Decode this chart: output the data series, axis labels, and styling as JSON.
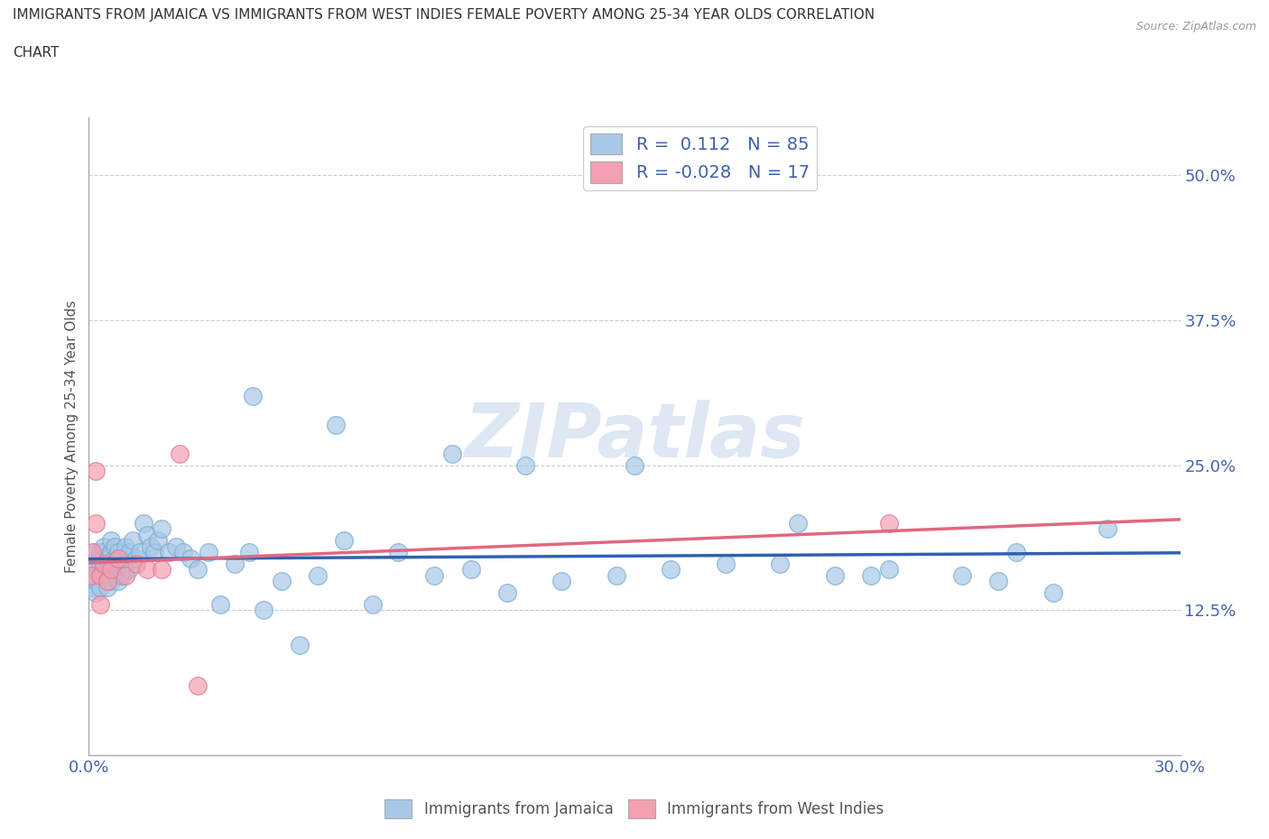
{
  "title_line1": "IMMIGRANTS FROM JAMAICA VS IMMIGRANTS FROM WEST INDIES FEMALE POVERTY AMONG 25-34 YEAR OLDS CORRELATION",
  "title_line2": "CHART",
  "source": "Source: ZipAtlas.com",
  "ylabel": "Female Poverty Among 25-34 Year Olds",
  "xlim": [
    0.0,
    0.3
  ],
  "ylim": [
    0.0,
    0.55
  ],
  "yticks": [
    0.125,
    0.25,
    0.375,
    0.5
  ],
  "ytick_labels": [
    "12.5%",
    "25.0%",
    "37.5%",
    "50.0%"
  ],
  "xticks": [
    0.0,
    0.05,
    0.1,
    0.15,
    0.2,
    0.25,
    0.3
  ],
  "xtick_labels": [
    "0.0%",
    "",
    "",
    "",
    "",
    "",
    "30.0%"
  ],
  "jamaica_color": "#A8C8E8",
  "west_indies_color": "#F4A0B0",
  "jamaica_edge_color": "#7AAAD0",
  "west_indies_edge_color": "#E07890",
  "jamaica_line_color": "#3060B0",
  "west_indies_line_color": "#E06880",
  "jamaica_R": 0.112,
  "jamaica_N": 85,
  "west_indies_R": -0.028,
  "west_indies_N": 17,
  "background_color": "#FFFFFF",
  "grid_color": "#CCCCCC",
  "watermark": "ZIPatlas",
  "jamaica_x": [
    0.001,
    0.001,
    0.001,
    0.002,
    0.002,
    0.002,
    0.002,
    0.002,
    0.003,
    0.003,
    0.003,
    0.003,
    0.003,
    0.004,
    0.004,
    0.004,
    0.004,
    0.005,
    0.005,
    0.005,
    0.005,
    0.006,
    0.006,
    0.006,
    0.006,
    0.007,
    0.007,
    0.007,
    0.007,
    0.008,
    0.008,
    0.008,
    0.009,
    0.009,
    0.01,
    0.01,
    0.011,
    0.011,
    0.012,
    0.013,
    0.014,
    0.015,
    0.016,
    0.017,
    0.018,
    0.019,
    0.02,
    0.022,
    0.024,
    0.026,
    0.028,
    0.03,
    0.033,
    0.036,
    0.04,
    0.044,
    0.048,
    0.053,
    0.058,
    0.063,
    0.07,
    0.078,
    0.085,
    0.095,
    0.105,
    0.115,
    0.13,
    0.145,
    0.16,
    0.175,
    0.19,
    0.205,
    0.22,
    0.24,
    0.255,
    0.265,
    0.045,
    0.068,
    0.1,
    0.12,
    0.15,
    0.195,
    0.215,
    0.25,
    0.28
  ],
  "jamaica_y": [
    0.155,
    0.165,
    0.145,
    0.175,
    0.16,
    0.15,
    0.165,
    0.14,
    0.17,
    0.155,
    0.165,
    0.175,
    0.145,
    0.16,
    0.175,
    0.155,
    0.18,
    0.165,
    0.15,
    0.17,
    0.145,
    0.175,
    0.16,
    0.15,
    0.185,
    0.165,
    0.155,
    0.17,
    0.18,
    0.16,
    0.175,
    0.15,
    0.17,
    0.155,
    0.165,
    0.18,
    0.175,
    0.16,
    0.185,
    0.17,
    0.175,
    0.2,
    0.19,
    0.18,
    0.175,
    0.185,
    0.195,
    0.175,
    0.18,
    0.175,
    0.17,
    0.16,
    0.175,
    0.13,
    0.165,
    0.175,
    0.125,
    0.15,
    0.095,
    0.155,
    0.185,
    0.13,
    0.175,
    0.155,
    0.16,
    0.14,
    0.15,
    0.155,
    0.16,
    0.165,
    0.165,
    0.155,
    0.16,
    0.155,
    0.175,
    0.14,
    0.31,
    0.285,
    0.26,
    0.25,
    0.25,
    0.2,
    0.155,
    0.15,
    0.195
  ],
  "west_indies_x": [
    0.001,
    0.001,
    0.002,
    0.002,
    0.003,
    0.003,
    0.004,
    0.005,
    0.006,
    0.008,
    0.01,
    0.013,
    0.016,
    0.02,
    0.025,
    0.03,
    0.22
  ],
  "west_indies_y": [
    0.175,
    0.155,
    0.245,
    0.2,
    0.155,
    0.13,
    0.165,
    0.15,
    0.16,
    0.17,
    0.155,
    0.165,
    0.16,
    0.16,
    0.26,
    0.06,
    0.2
  ]
}
